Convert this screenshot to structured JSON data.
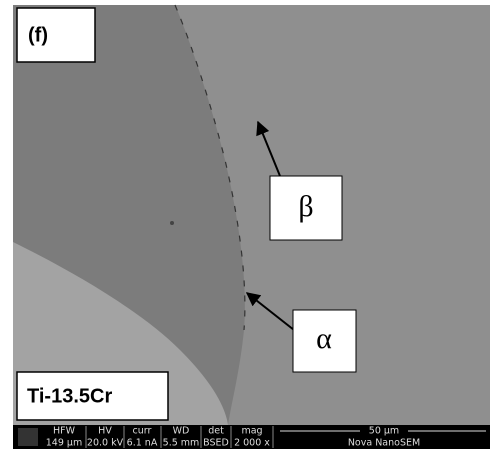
{
  "panel_label": "(f)",
  "annotations": {
    "beta": "β",
    "alpha": "α"
  },
  "sample_label": "Ti-13.5Cr",
  "info_bar": {
    "columns": [
      {
        "name": "HFW",
        "value": "149 µm"
      },
      {
        "name": "HV",
        "value": "20.0 kV"
      },
      {
        "name": "curr",
        "value": "6.1 nA"
      },
      {
        "name": "WD",
        "value": "5.5 mm"
      },
      {
        "name": "det",
        "value": "BSED"
      },
      {
        "name": "mag",
        "value": "2 000 x"
      }
    ],
    "scale_bar": "50 µm",
    "instrument": "Nova NanoSEM"
  }
}
